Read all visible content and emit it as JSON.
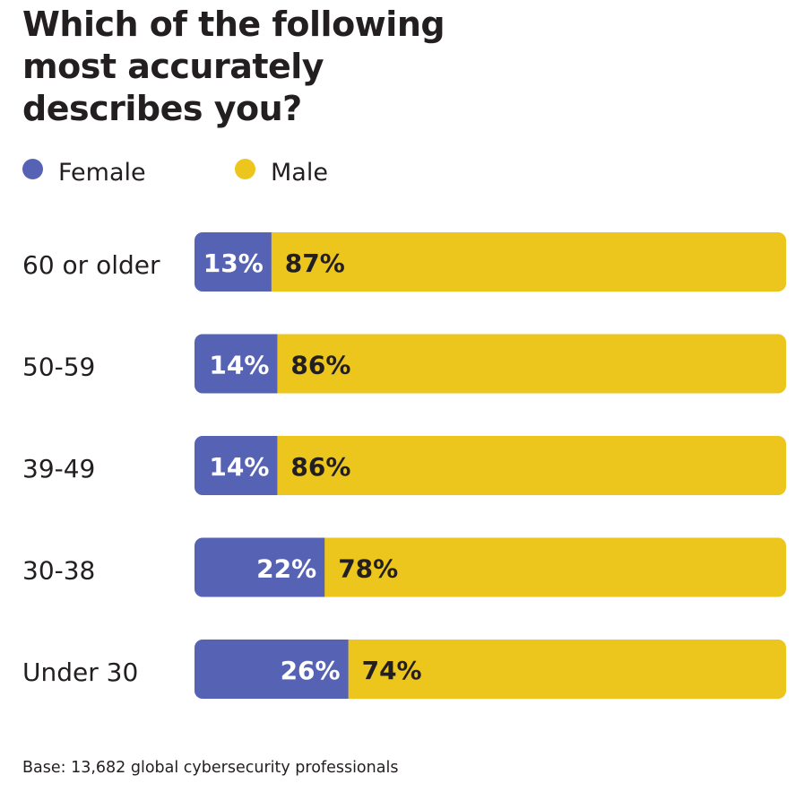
{
  "title_lines": [
    "Which of the following",
    "most accurately",
    "describes you?"
  ],
  "footnote": "Base: 13,682 global cybersecurity professionals",
  "chart_data": {
    "type": "bar",
    "orientation": "horizontal",
    "stacked": true,
    "normalized": "percent",
    "title": "Which of the following most accurately describes you?",
    "categories": [
      "60 or older",
      "50-59",
      "39-49",
      "30-38",
      "Under 30"
    ],
    "series": [
      {
        "name": "Female",
        "color": "#5663b5",
        "values": [
          13,
          14,
          14,
          22,
          26
        ],
        "labels": [
          "13%",
          "14%",
          "14%",
          "22%",
          "26%"
        ]
      },
      {
        "name": "Male",
        "color": "#ecc61c",
        "values": [
          87,
          86,
          86,
          78,
          74
        ],
        "labels": [
          "87%",
          "86%",
          "86%",
          "78%",
          "74%"
        ]
      }
    ],
    "xlim": [
      0,
      100
    ],
    "grid": false,
    "legend_position": "top-left",
    "data_label_colors": {
      "Female": "#ffffff",
      "Male": "#231f20"
    }
  }
}
